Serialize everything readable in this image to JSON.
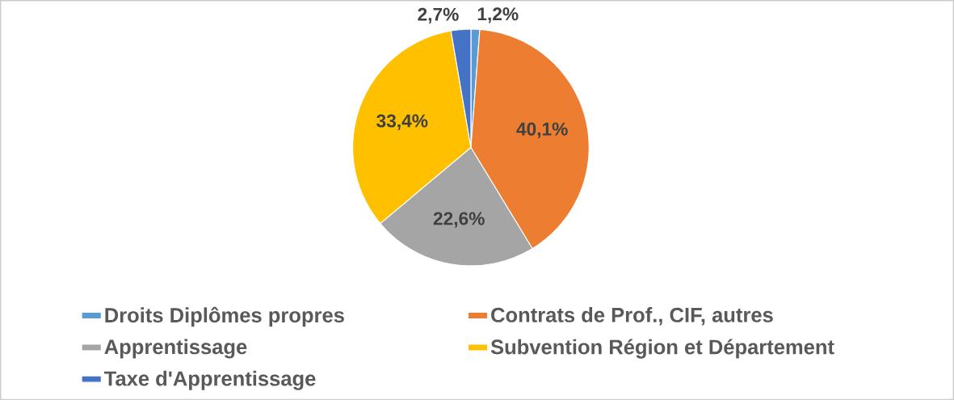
{
  "chart_data": {
    "type": "pie",
    "categories": [
      "Droits Diplômes propres",
      "Contrats de Prof., CIF, autres",
      "Apprentissage",
      "Subvention Région et Département",
      "Taxe d'Apprentissage"
    ],
    "values": [
      1.2,
      40.1,
      22.6,
      33.4,
      2.7
    ],
    "value_labels": [
      "1,2%",
      "40,1%",
      "22,6%",
      "33,4%",
      "2,7%"
    ],
    "colors": [
      "#5b9bd5",
      "#ed7d31",
      "#a5a5a5",
      "#ffc000",
      "#4472c4"
    ],
    "legend": "bottom"
  }
}
